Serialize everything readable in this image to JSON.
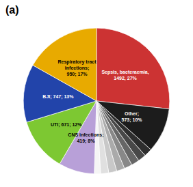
{
  "chart_data": {
    "type": "pie",
    "annotation": "(a)",
    "categories": [
      "Sepsis, bacteraemia,\n1492, 27%",
      "Other;\n573; 10%",
      null,
      null,
      null,
      null,
      null,
      null,
      null,
      null,
      "CNS infections;\n419; 8%",
      "UTI; 671; 12%",
      "BJI; 747; 13%",
      "Respiratory tract\ninfections;\n950; 17%"
    ],
    "values": [
      27,
      10,
      1.8,
      1.8,
      1.8,
      1.8,
      1.8,
      1.8,
      1.8,
      1.4,
      8,
      12,
      13,
      17
    ],
    "colors": [
      "#cc3333",
      "#1c1c1c",
      "#2e2e2e",
      "#484848",
      "#666666",
      "#888888",
      "#aaaaaa",
      "#c8c8c8",
      "#e0e0e0",
      "#f5f5f5",
      "#b8a0d8",
      "#7dc832",
      "#2244aa",
      "#e8aa00"
    ]
  }
}
